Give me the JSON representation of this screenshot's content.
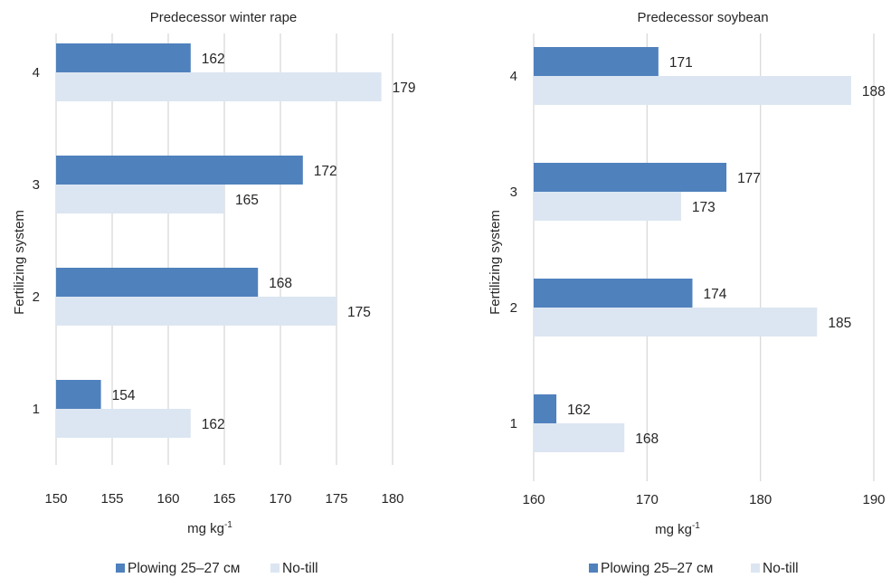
{
  "colors": {
    "plowing": "#4f81bd",
    "notill": "#dce6f2",
    "grid": "#d9d9d9"
  },
  "chart_data": [
    {
      "type": "bar",
      "orientation": "horizontal",
      "title": "Predecessor winter rape",
      "xlabel": "mg kg",
      "xlabel_sup": "-1",
      "ylabel": "Fertilizing system",
      "categories": [
        "1",
        "2",
        "3",
        "4"
      ],
      "xlim": [
        150,
        180
      ],
      "xticks": [
        150,
        155,
        160,
        165,
        170,
        175,
        180
      ],
      "grid": true,
      "legend": "bottom",
      "series": [
        {
          "name": "Plowing 25–27 см",
          "values": [
            154,
            168,
            172,
            162
          ]
        },
        {
          "name": "No-till",
          "values": [
            162,
            175,
            165,
            179
          ]
        }
      ]
    },
    {
      "type": "bar",
      "orientation": "horizontal",
      "title": "Predecessor soybean",
      "xlabel": "mg kg",
      "xlabel_sup": "-1",
      "ylabel": "Fertilizing system",
      "categories": [
        "1",
        "2",
        "3",
        "4"
      ],
      "xlim": [
        160,
        190
      ],
      "xticks": [
        160,
        170,
        180,
        190
      ],
      "grid": true,
      "legend": "bottom",
      "series": [
        {
          "name": "Plowing 25–27 см",
          "values": [
            162,
            174,
            177,
            171
          ]
        },
        {
          "name": "No-till",
          "values": [
            168,
            185,
            173,
            188
          ]
        }
      ]
    }
  ]
}
